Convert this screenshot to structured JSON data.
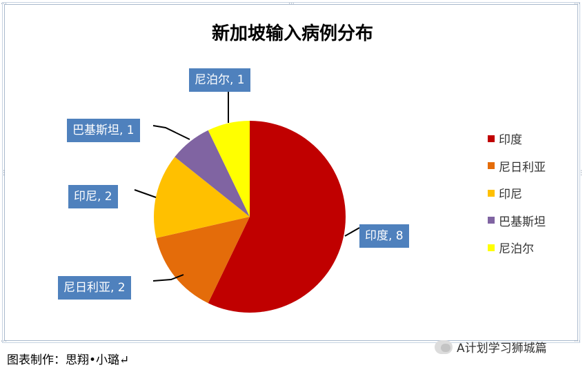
{
  "chart_data": {
    "type": "pie",
    "title": "新加坡输入病例分布",
    "categories": [
      "印度",
      "尼日利亚",
      "印尼",
      "巴基斯坦",
      "尼泊尔"
    ],
    "values": [
      8,
      2,
      2,
      1,
      1
    ],
    "colors": [
      "#c00000",
      "#e46c0a",
      "#ffc000",
      "#8064a2",
      "#ffff00"
    ],
    "data_labels": [
      "印度, 8",
      "尼日利亚, 2",
      "印尼, 2",
      "巴基斯坦, 1",
      "尼泊尔, 1"
    ],
    "legend_position": "right",
    "label_color": "#4f81bd"
  },
  "caption": "图表制作：思翔•小璐↵",
  "watermark": "A计划学习狮城篇"
}
